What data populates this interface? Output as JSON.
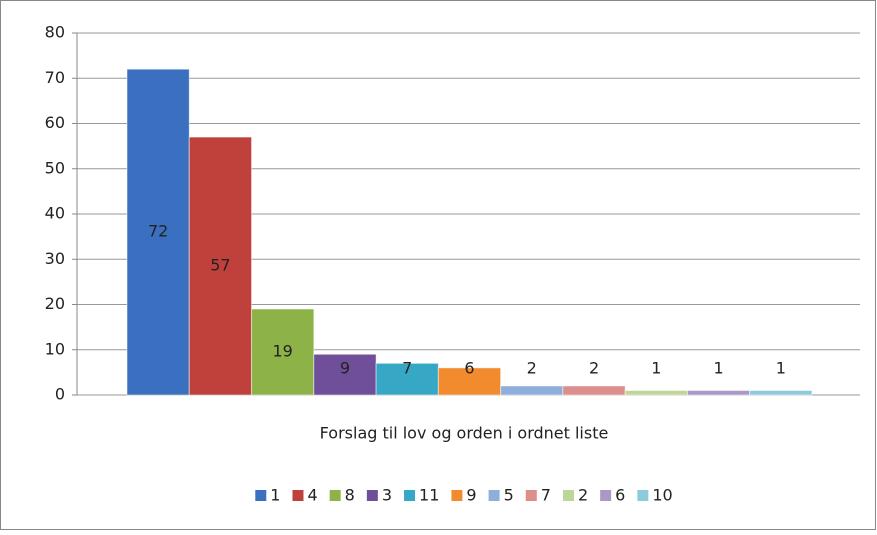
{
  "chart_data": {
    "type": "bar",
    "x_label": "Forslag til lov og orden i ordnet liste",
    "series": [
      {
        "name": "1",
        "color": "#3b6fbf",
        "values": [
          72
        ]
      },
      {
        "name": "4",
        "color": "#c0403c",
        "values": [
          57
        ]
      },
      {
        "name": "8",
        "color": "#8db348",
        "values": [
          19
        ]
      },
      {
        "name": "3",
        "color": "#6f4f99",
        "values": [
          9
        ]
      },
      {
        "name": "11",
        "color": "#36a8c6",
        "values": [
          7
        ]
      },
      {
        "name": "9",
        "color": "#f28a2e",
        "values": [
          6
        ]
      },
      {
        "name": "5",
        "color": "#8eaedb",
        "values": [
          2
        ]
      },
      {
        "name": "7",
        "color": "#dc8e8c",
        "values": [
          2
        ]
      },
      {
        "name": "2",
        "color": "#bfd699",
        "values": [
          1
        ]
      },
      {
        "name": "6",
        "color": "#ab98c7",
        "values": [
          1
        ]
      },
      {
        "name": "10",
        "color": "#8ccbdc",
        "values": [
          1
        ]
      }
    ],
    "ylim": [
      0,
      80
    ],
    "yticks": [
      0,
      10,
      20,
      30,
      40,
      50,
      60,
      70,
      80
    ],
    "grid": true,
    "legend": "bottom"
  }
}
